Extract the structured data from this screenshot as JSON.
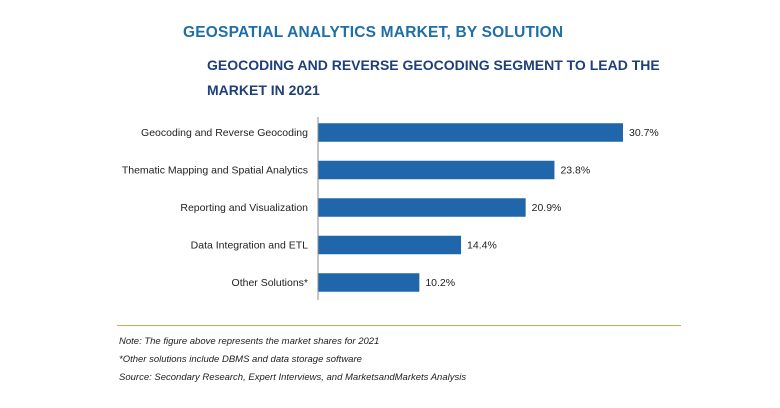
{
  "header": {
    "title": "GEOSPATIAL ANALYTICS MARKET, BY SOLUTION",
    "subtitle": "GEOCODING AND REVERSE GEOCODING SEGMENT TO LEAD THE MARKET IN 2021"
  },
  "chart_data": {
    "type": "bar",
    "orientation": "horizontal",
    "categories": [
      "Geocoding and Reverse Geocoding",
      "Thematic Mapping and Spatial Analytics",
      "Reporting and Visualization",
      "Data Integration and ETL",
      "Other Solutions*"
    ],
    "values": [
      30.7,
      23.8,
      20.9,
      14.4,
      10.2
    ],
    "value_labels": [
      "30.7%",
      "23.8%",
      "20.9%",
      "14.4%",
      "10.2%"
    ],
    "unit": "%",
    "xlim": [
      0,
      31
    ],
    "grid": false,
    "legend": "none",
    "colors": {
      "bar": "#1f66aa",
      "axis": "#8c8c8c"
    }
  },
  "footer": {
    "note": "Note: The figure above represents the market shares for 2021",
    "footnote": "*Other solutions include DBMS and data storage software",
    "source": "Source: Secondary Research, Expert Interviews, and MarketsandMarkets Analysis"
  }
}
